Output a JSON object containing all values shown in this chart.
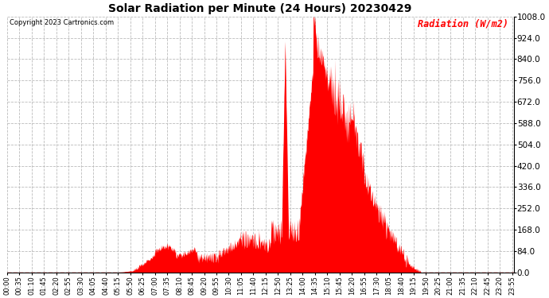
{
  "title": "Solar Radiation per Minute (24 Hours) 20230429",
  "copyright_text": "Copyright 2023 Cartronics.com",
  "ylabel": "Radiation (W/m2)",
  "ylabel_color": "#ff0000",
  "bar_color": "#ff0000",
  "background_color": "#ffffff",
  "grid_color": "#bbbbbb",
  "ymin": 0.0,
  "ymax": 1008.0,
  "ytick_values": [
    0.0,
    84.0,
    168.0,
    252.0,
    336.0,
    420.0,
    504.0,
    588.0,
    672.0,
    756.0,
    840.0,
    924.0,
    1008.0
  ],
  "hline_color": "#ff0000",
  "total_minutes": 1440,
  "xtick_step": 35
}
